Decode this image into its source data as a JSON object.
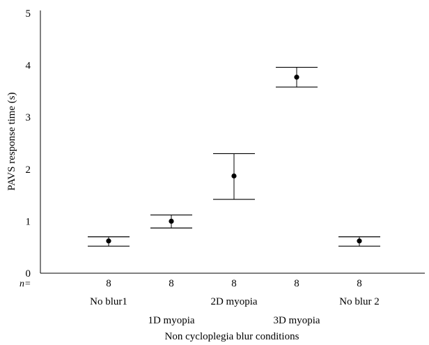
{
  "chart_data": {
    "type": "scatter",
    "title": "",
    "xlabel": "Non cycloplegia blur conditions",
    "ylabel": "PAVS response time (s)",
    "ylim": [
      0,
      5
    ],
    "yticks": [
      0,
      1,
      2,
      3,
      4,
      5
    ],
    "grid": false,
    "n_label": "n=",
    "categories": [
      "No blur1",
      "1D myopia",
      "2D myopia",
      "3D myopia",
      "No blur 2"
    ],
    "n": [
      "8",
      "8",
      "8",
      "8",
      "8"
    ],
    "series": [
      {
        "values": [
          0.62,
          1.0,
          1.87,
          3.77,
          0.62
        ],
        "error_low": [
          0.52,
          0.87,
          1.42,
          3.58,
          0.52
        ],
        "error_high": [
          0.7,
          1.12,
          2.3,
          3.96,
          0.7
        ]
      }
    ]
  }
}
